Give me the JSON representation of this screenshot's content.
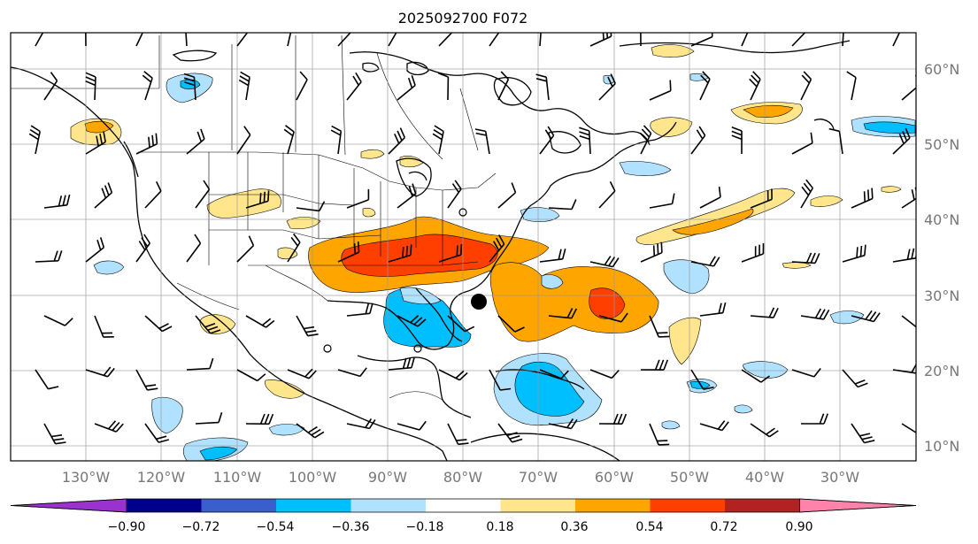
{
  "title": "2025092700 F072",
  "lon_labels": [
    "130°W",
    "120°W",
    "110°W",
    "100°W",
    "90°W",
    "80°W",
    "70°W",
    "60°W",
    "50°W",
    "40°W",
    "30°W"
  ],
  "lat_labels": [
    "60°N",
    "50°N",
    "40°N",
    "30°N",
    "20°N",
    "10°N"
  ],
  "colorbar": {
    "tick_labels": [
      "−0.90",
      "−0.72",
      "−0.54",
      "−0.36",
      "−0.18",
      "0.18",
      "0.36",
      "0.54",
      "0.72",
      "0.90"
    ],
    "colors": [
      "#9a32cd",
      "#00008b",
      "#3a5fcd",
      "#00bfff",
      "#b0e2ff",
      "#ffffff",
      "#ffe68c",
      "#ffa500",
      "#ff3f00",
      "#b22222",
      "#ff82ab"
    ]
  },
  "features": {
    "marker_color": "#000000",
    "land_line_color": "#000000",
    "grid_color": "#999999"
  }
}
